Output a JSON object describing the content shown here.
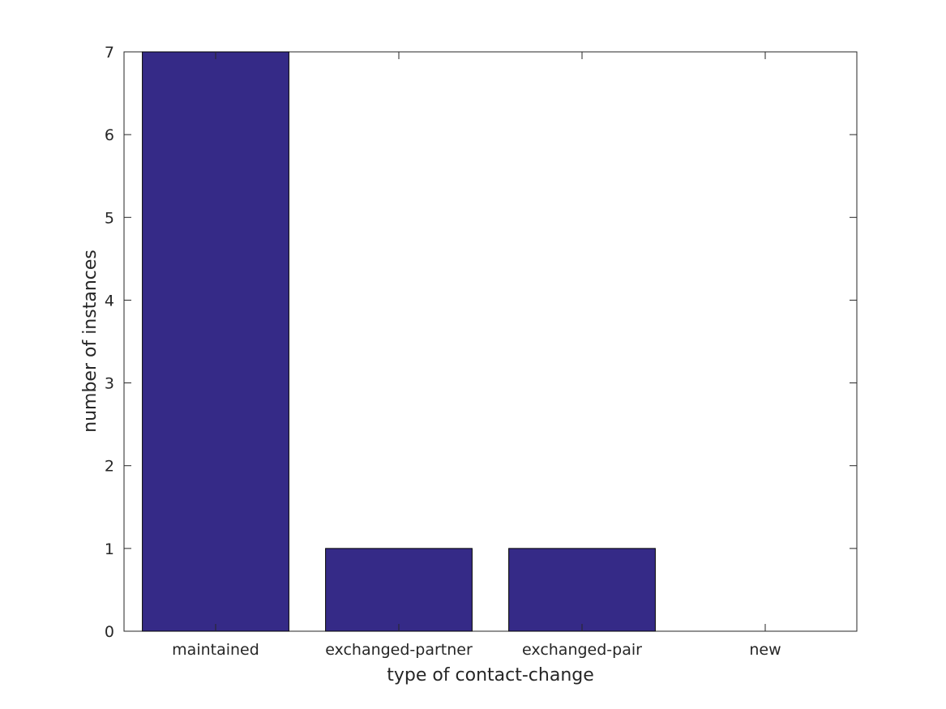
{
  "chart_data": {
    "type": "bar",
    "title": "",
    "xlabel": "type of contact-change",
    "ylabel": "number of instances",
    "categories": [
      "maintained",
      "exchanged-partner",
      "exchanged-pair",
      "new"
    ],
    "values": [
      7,
      1,
      1,
      0
    ],
    "ylim": [
      0,
      7
    ],
    "yticks": [
      0,
      1,
      2,
      3,
      4,
      5,
      6,
      7
    ],
    "grid": false,
    "legend": "none",
    "colors": {
      "bar_fill": "#352a87",
      "bar_stroke": "#000000",
      "axis": "#262626",
      "text": "#262626"
    }
  }
}
